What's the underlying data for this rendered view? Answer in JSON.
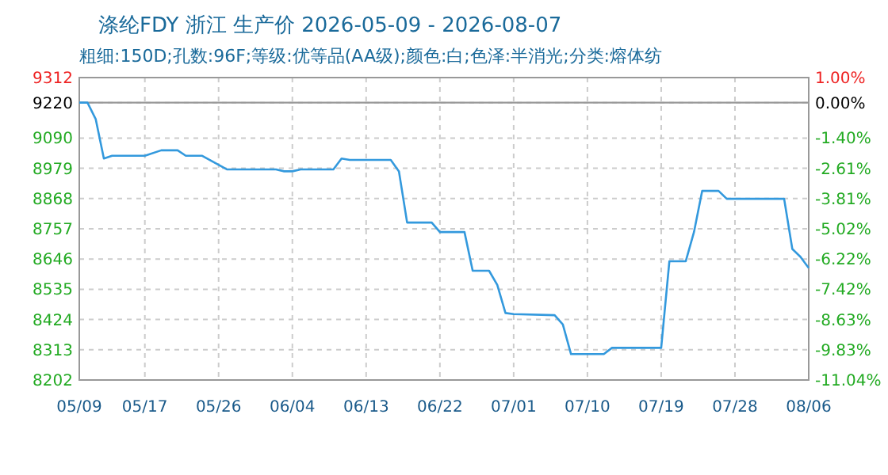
{
  "chart_data": {
    "type": "line",
    "title": "涤纶FDY 浙江 生产价 2026-05-09 - 2026-08-07",
    "subtitle": "粗细:150D;孔数:96F;等级:优等品(AA级);颜色:白;色泽:半消光;分类:熔体纺",
    "x": [
      "2026-05-09",
      "2026-05-10",
      "2026-05-11",
      "2026-05-12",
      "2026-05-13",
      "2026-05-17",
      "2026-05-19",
      "2026-05-21",
      "2026-05-22",
      "2026-05-24",
      "2026-05-27",
      "2026-06-02",
      "2026-06-03",
      "2026-06-04",
      "2026-06-05",
      "2026-06-09",
      "2026-06-10",
      "2026-06-11",
      "2026-06-16",
      "2026-06-17",
      "2026-06-18",
      "2026-06-21",
      "2026-06-22",
      "2026-06-25",
      "2026-06-26",
      "2026-06-28",
      "2026-06-29",
      "2026-06-30",
      "2026-07-01",
      "2026-07-06",
      "2026-07-07",
      "2026-07-08",
      "2026-07-12",
      "2026-07-13",
      "2026-07-19",
      "2026-07-20",
      "2026-07-22",
      "2026-07-23",
      "2026-07-24",
      "2026-07-26",
      "2026-07-27",
      "2026-08-03",
      "2026-08-04",
      "2026-08-05",
      "2026-08-06"
    ],
    "series": [
      {
        "color": "#3399dd",
        "values": [
          9220,
          9220,
          9160,
          9015,
          9025,
          9025,
          9045,
          9045,
          9025,
          9025,
          8975,
          8975,
          8968,
          8968,
          8975,
          8975,
          9015,
          9010,
          9010,
          8968,
          8780,
          8780,
          8745,
          8745,
          8603,
          8603,
          8551,
          8448,
          8444,
          8440,
          8406,
          8297,
          8297,
          8320,
          8320,
          8638,
          8638,
          8745,
          8896,
          8896,
          8867,
          8867,
          8683,
          8654,
          8613
        ]
      }
    ],
    "xlim": [
      "2026-05-09",
      "2026-08-06"
    ],
    "xticks": [
      {
        "value": "2026-05-09",
        "label": "05/09"
      },
      {
        "value": "2026-05-17",
        "label": "05/17"
      },
      {
        "value": "2026-05-26",
        "label": "05/26"
      },
      {
        "value": "2026-06-04",
        "label": "06/04"
      },
      {
        "value": "2026-06-13",
        "label": "06/13"
      },
      {
        "value": "2026-06-22",
        "label": "06/22"
      },
      {
        "value": "2026-07-01",
        "label": "07/01"
      },
      {
        "value": "2026-07-10",
        "label": "07/10"
      },
      {
        "value": "2026-07-19",
        "label": "07/19"
      },
      {
        "value": "2026-07-28",
        "label": "07/28"
      },
      {
        "value": "2026-08-06",
        "label": "08/06"
      }
    ],
    "ylim": [
      8202,
      9312
    ],
    "yticks": [
      8202,
      8313,
      8424,
      8535,
      8646,
      8757,
      8868,
      8979,
      9090,
      9220,
      9312
    ],
    "y2lim": [
      -11.04,
      1.0
    ],
    "y2ticks": [
      {
        "value": -11.04,
        "label": "-11.04%"
      },
      {
        "value": -9.83,
        "label": "-9.83%"
      },
      {
        "value": -8.63,
        "label": "-8.63%"
      },
      {
        "value": -7.42,
        "label": "-7.42%"
      },
      {
        "value": -6.22,
        "label": "-6.22%"
      },
      {
        "value": -5.02,
        "label": "-5.02%"
      },
      {
        "value": -3.81,
        "label": "-3.81%"
      },
      {
        "value": -2.61,
        "label": "-2.61%"
      },
      {
        "value": -1.4,
        "label": "-1.40%"
      },
      {
        "value": 0,
        "label": "0.00%"
      },
      {
        "value": 1.0,
        "label": "1.00%"
      }
    ],
    "ref_lines": [
      {
        "axis": "y",
        "value": 9220,
        "color": "#999999",
        "line_style": "solid"
      }
    ],
    "grid": true,
    "line_style": "solid",
    "marker": "none"
  }
}
